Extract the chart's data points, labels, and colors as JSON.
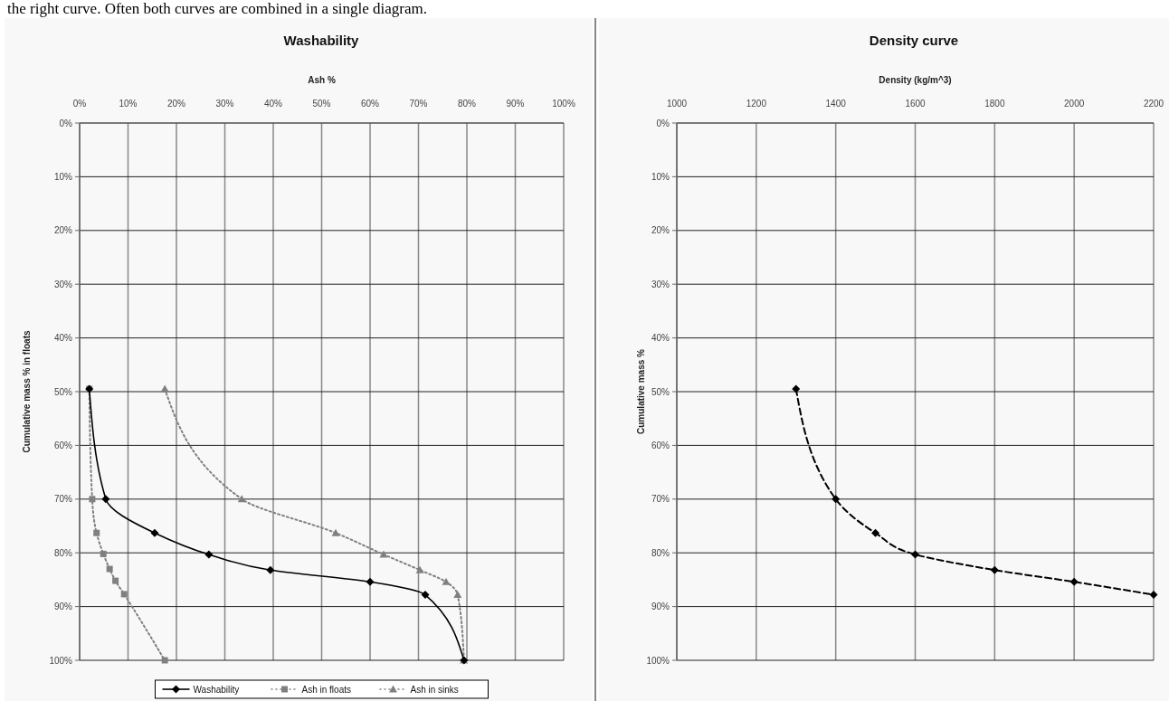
{
  "chart_data": [
    {
      "type": "line",
      "title": "Washability",
      "xlabel": "Ash %",
      "ylabel": "Cumulative mass % in floats",
      "annotations": [
        "the right curve. Often both curves are combined in a single diagram."
      ],
      "xlim": [
        0,
        100
      ],
      "ylim": [
        100,
        0
      ],
      "xticks": [
        {
          "value": 0,
          "label": "0%"
        },
        {
          "value": 10,
          "label": "10%"
        },
        {
          "value": 20,
          "label": "20%"
        },
        {
          "value": 30,
          "label": "30%"
        },
        {
          "value": 40,
          "label": "40%"
        },
        {
          "value": 50,
          "label": "50%"
        },
        {
          "value": 60,
          "label": "60%"
        },
        {
          "value": 70,
          "label": "70%"
        },
        {
          "value": 80,
          "label": "80%"
        },
        {
          "value": 90,
          "label": "90%"
        },
        {
          "value": 100,
          "label": "100%"
        }
      ],
      "yticks": [
        {
          "value": 0,
          "label": "0%"
        },
        {
          "value": 10,
          "label": "10%"
        },
        {
          "value": 20,
          "label": "20%"
        },
        {
          "value": 30,
          "label": "30%"
        },
        {
          "value": 40,
          "label": "40%"
        },
        {
          "value": 50,
          "label": "50%"
        },
        {
          "value": 60,
          "label": "60%"
        },
        {
          "value": 70,
          "label": "70%"
        },
        {
          "value": 80,
          "label": "80%"
        },
        {
          "value": 90,
          "label": "90%"
        },
        {
          "value": 100,
          "label": "100%"
        }
      ],
      "grid": true,
      "legend": "bottom",
      "series": [
        {
          "name": "Washability",
          "color": "#000000",
          "marker": "diamond",
          "line_style": "solid",
          "x": [
            2,
            5.4,
            15.5,
            26.7,
            39.4,
            60,
            71.4,
            79.4
          ],
          "values": [
            49.5,
            70,
            76.3,
            80.3,
            83.2,
            85.4,
            87.8,
            100
          ]
        },
        {
          "name": "Ash in floats",
          "color": "#808080",
          "marker": "square",
          "line_style": "dotted",
          "x": [
            2,
            2.6,
            3.5,
            4.9,
            6.2,
            7.4,
            9.2,
            17.6
          ],
          "values": [
            49.5,
            70,
            76.3,
            80.2,
            83,
            85.2,
            87.7,
            100
          ]
        },
        {
          "name": "Ash in sinks",
          "color": "#808080",
          "marker": "triangle",
          "line_style": "dotted",
          "x": [
            17.6,
            33.5,
            52.9,
            62.8,
            70.3,
            75.7,
            78.1,
            79.4
          ],
          "values": [
            49.5,
            70,
            76.3,
            80.3,
            83.2,
            85.4,
            87.8,
            100
          ]
        }
      ]
    },
    {
      "type": "line",
      "title": "Density curve",
      "xlabel": "Density (kg/m^3)",
      "ylabel": "Cumulative mass %",
      "xlim": [
        1000,
        2200
      ],
      "ylim": [
        100,
        0
      ],
      "xticks": [
        1000,
        1200,
        1400,
        1600,
        1800,
        2000,
        2200
      ],
      "yticks": [
        {
          "value": 0,
          "label": "0%"
        },
        {
          "value": 10,
          "label": "10%"
        },
        {
          "value": 20,
          "label": "20%"
        },
        {
          "value": 30,
          "label": "30%"
        },
        {
          "value": 40,
          "label": "40%"
        },
        {
          "value": 50,
          "label": "50%"
        },
        {
          "value": 60,
          "label": "60%"
        },
        {
          "value": 70,
          "label": "70%"
        },
        {
          "value": 80,
          "label": "80%"
        },
        {
          "value": 90,
          "label": "90%"
        },
        {
          "value": 100,
          "label": "100%"
        }
      ],
      "grid": true,
      "series": [
        {
          "color": "#000000",
          "marker": "diamond",
          "line_style": "dashed",
          "x": [
            1300,
            1400,
            1500,
            1600,
            1800,
            2000,
            2200
          ],
          "values": [
            49.5,
            70,
            76.3,
            80.3,
            83.2,
            85.4,
            87.8
          ]
        }
      ]
    }
  ]
}
